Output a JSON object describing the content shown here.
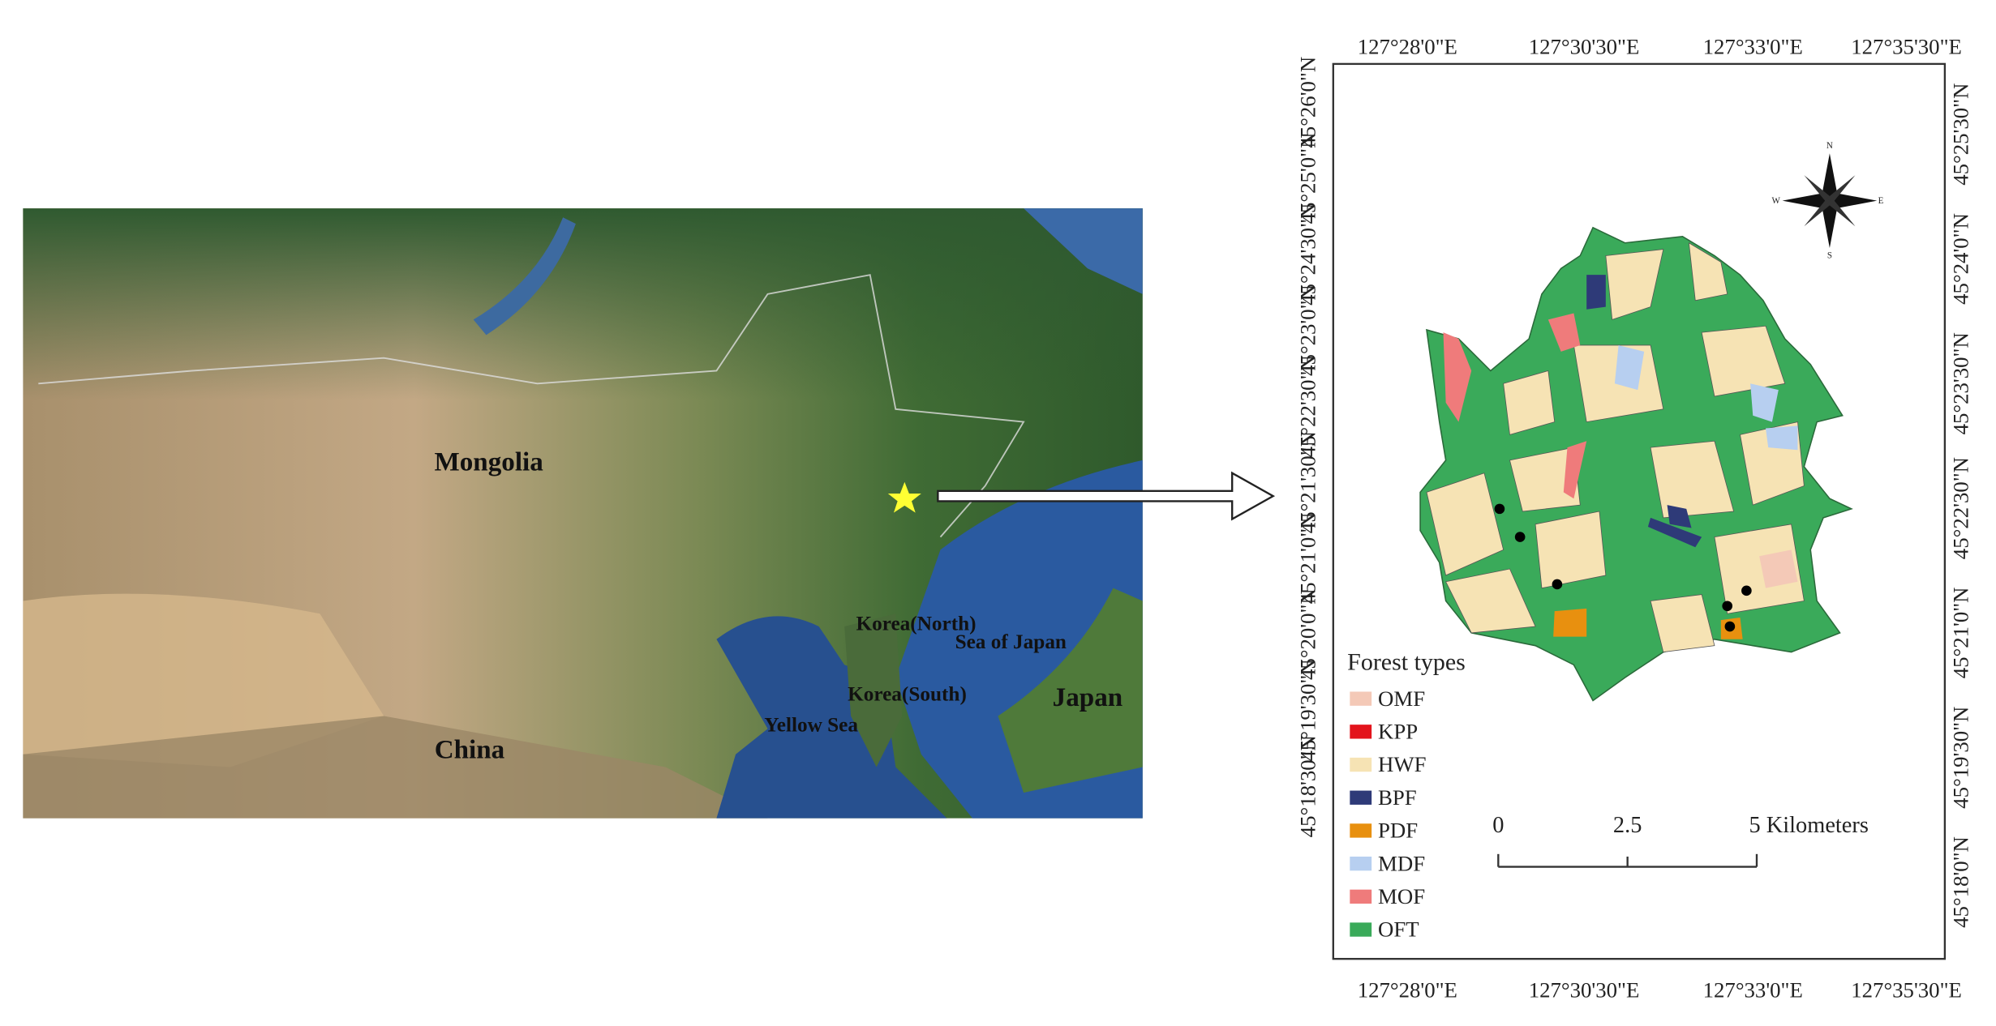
{
  "left_map": {
    "labels": [
      "Mongolia",
      "China",
      "Korea(North)",
      "Korea(South)",
      "Sea of Japan",
      "Yellow Sea",
      "Japan"
    ]
  },
  "right_map": {
    "top_ticks": [
      "127°28'0\"E",
      "127°30'30\"E",
      "127°33'0\"E",
      "127°35'30\"E"
    ],
    "bottom_ticks": [
      "127°28'0\"E",
      "127°30'30\"E",
      "127°33'0\"E",
      "127°35'30\"E"
    ],
    "left_ticks": [
      "45°26'0\"N",
      "45°25'0\"N",
      "45°24'30\"N",
      "45°23'0\"N",
      "45°22'30\"N",
      "45°21'30\"N",
      "45°21'0\"N",
      "45°20'0\"N",
      "45°19'30\"N",
      "45°18'30\"N"
    ],
    "right_ticks": [
      "45°25'30\"N",
      "45°24'0\"N",
      "45°23'30\"N",
      "45°22'30\"N",
      "45°21'0\"N",
      "45°19'30\"N",
      "45°18'0\"N"
    ],
    "compass": [
      "N",
      "E",
      "S",
      "W"
    ],
    "legend": {
      "title": "Forest types",
      "items": [
        {
          "label": "OMF",
          "color": "#f4c9b7"
        },
        {
          "label": "KPP",
          "color": "#e3141c"
        },
        {
          "label": "HWF",
          "color": "#f6e3b4"
        },
        {
          "label": "BPF",
          "color": "#2e3a78"
        },
        {
          "label": "PDF",
          "color": "#e8900f"
        },
        {
          "label": "MDF",
          "color": "#b7cff0"
        },
        {
          "label": "MOF",
          "color": "#ef7b7b"
        },
        {
          "label": "OFT",
          "color": "#3aaa5a"
        }
      ]
    },
    "scale_bar": [
      "0",
      "2.5",
      "5 Kilometers"
    ]
  }
}
